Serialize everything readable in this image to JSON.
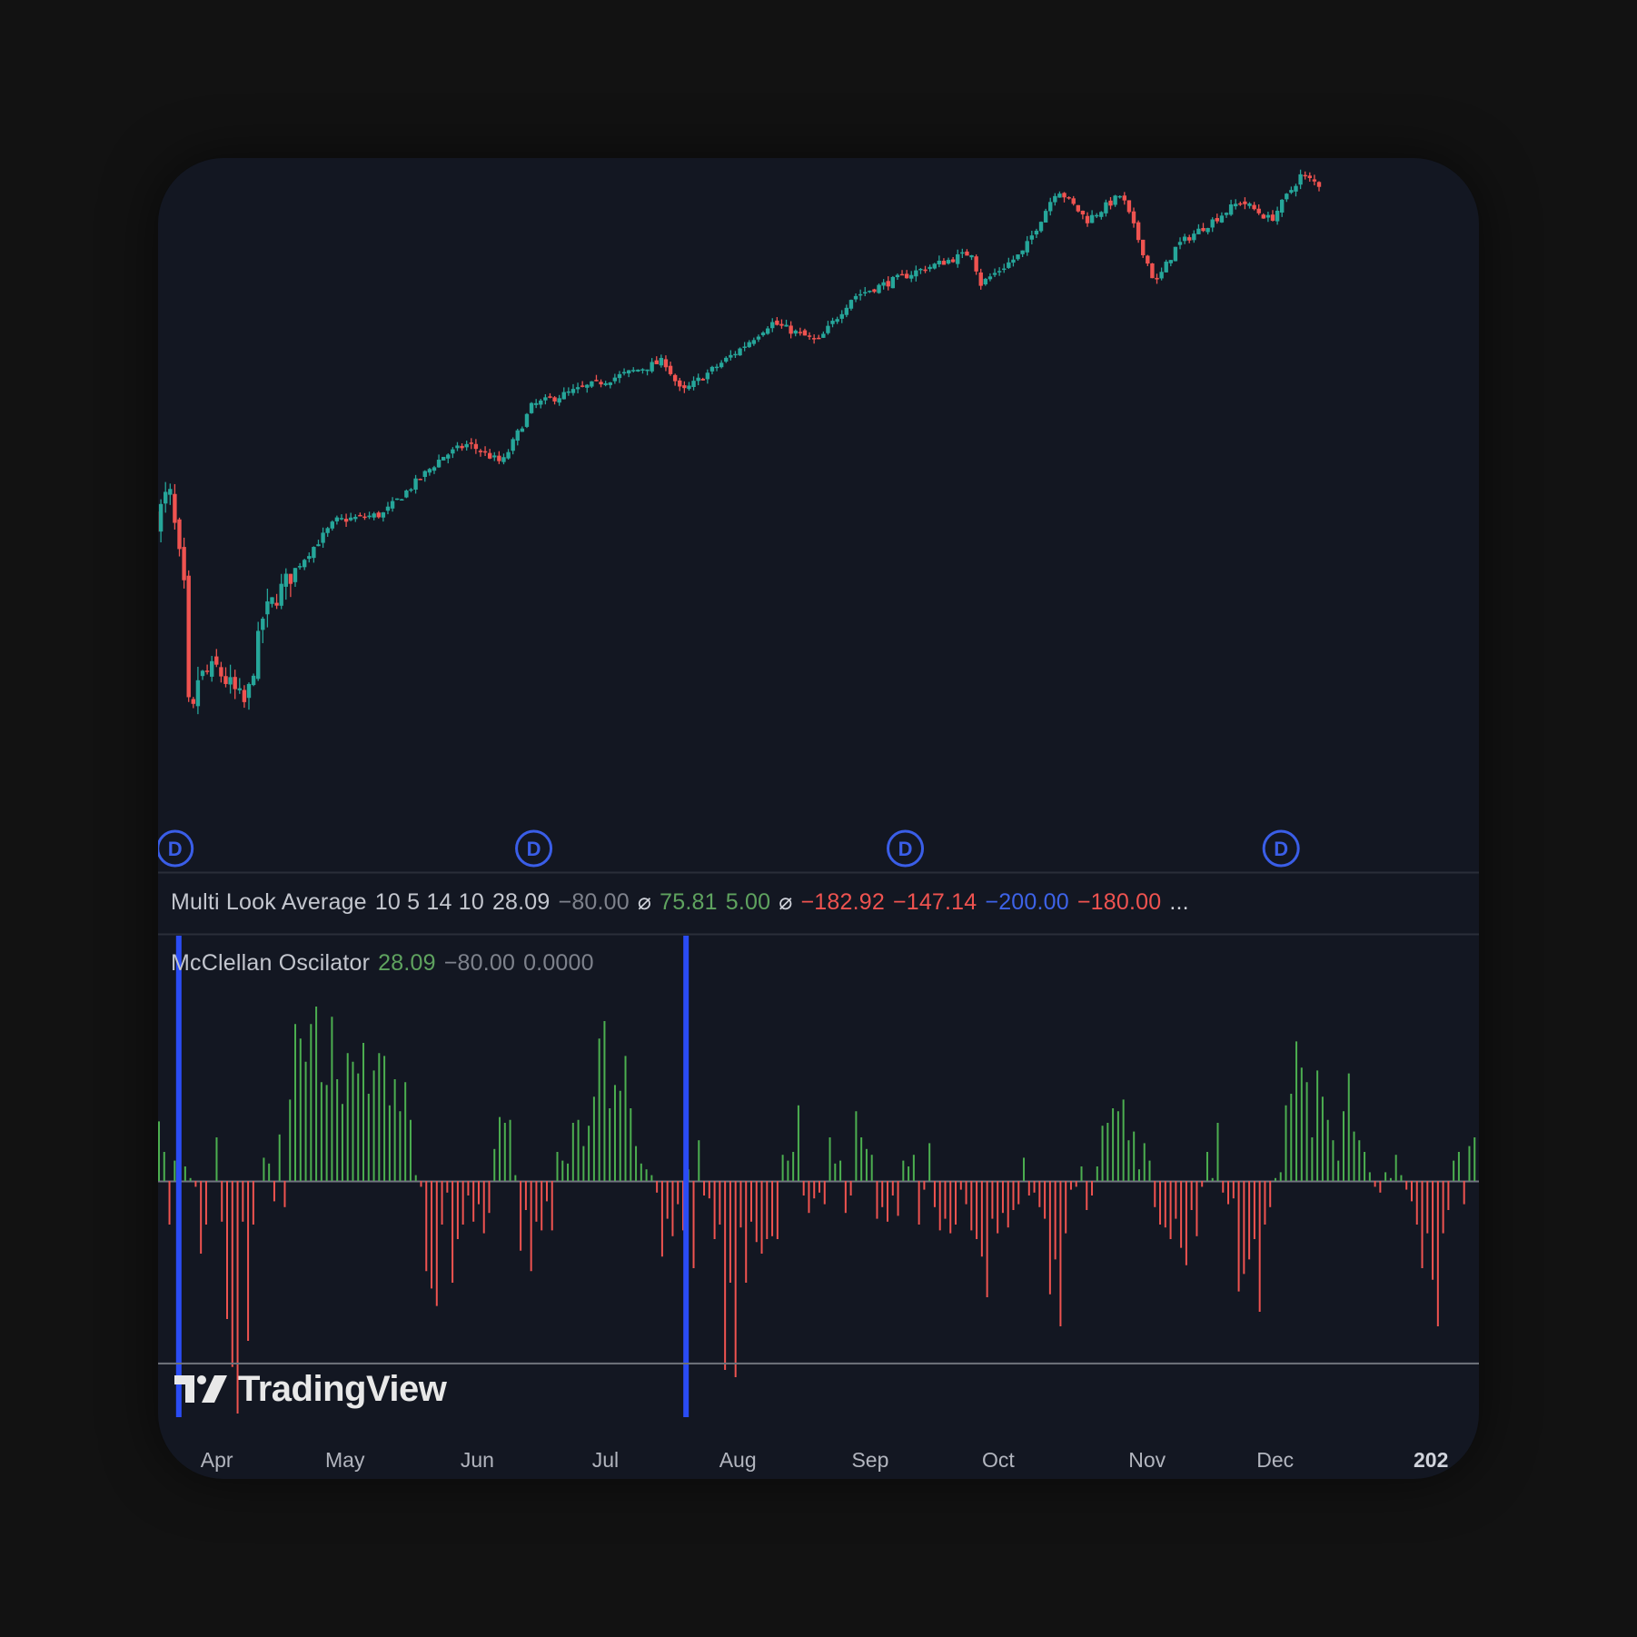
{
  "colors": {
    "background": "#131722",
    "up": "#26a69a",
    "down": "#ef5350",
    "hist_up": "#4caf50",
    "hist_down": "#ef5350",
    "highlight": "#2a4cf5",
    "dividend": "#3a5ee8"
  },
  "legend_mla": {
    "name": "Multi Look Average",
    "params": "10 5 14 10",
    "v1": "28.09",
    "v2": "−80.00",
    "sym1": "⌀",
    "v3": "75.81",
    "v4": "5.00",
    "sym2": "⌀",
    "v5": "−182.92",
    "v6": "−147.14",
    "v7": "−200.00",
    "v8": "−180.00",
    "more": "..."
  },
  "legend_osc": {
    "name": "McClellan Oscilator",
    "v1": "28.09",
    "v2": "−80.00",
    "v3": "0.0000"
  },
  "dividend_markers": [
    {
      "label": "D",
      "date": "Apr 1"
    },
    {
      "label": "D",
      "date": "Jun 24"
    },
    {
      "label": "D",
      "date": "Sep 19"
    },
    {
      "label": "D",
      "date": "Dec 16"
    }
  ],
  "branding": {
    "name": "TradingView",
    "logo_icon": "tradingview-logo-icon"
  },
  "time_axis": {
    "labels": [
      "Apr",
      "May",
      "Jun",
      "Jul",
      "Aug",
      "Sep",
      "Oct",
      "Nov",
      "Dec",
      "202"
    ]
  },
  "chart_data": [
    {
      "type": "candlestick",
      "title": "",
      "x_range": [
        "Mar 31",
        "Dec 30"
      ],
      "y_axis_shown": false,
      "price_path": [
        {
          "date": "Mar 31",
          "close": 0.45
        },
        {
          "date": "Apr 3",
          "close": 0.5
        },
        {
          "date": "Apr 7",
          "close": 0.32
        },
        {
          "date": "Apr 8",
          "close": 0.05
        },
        {
          "date": "Apr 9",
          "close": 0.2
        },
        {
          "date": "Apr 14",
          "close": 0.22
        },
        {
          "date": "Apr 21",
          "close": 0.16
        },
        {
          "date": "Apr 25",
          "close": 0.3
        },
        {
          "date": "May 2",
          "close": 0.37
        },
        {
          "date": "May 12",
          "close": 0.45
        },
        {
          "date": "May 23",
          "close": 0.46
        },
        {
          "date": "Jun 6",
          "close": 0.55
        },
        {
          "date": "Jun 12",
          "close": 0.57
        },
        {
          "date": "Jun 20",
          "close": 0.54
        },
        {
          "date": "Jun 27",
          "close": 0.63
        },
        {
          "date": "Jul 10",
          "close": 0.66
        },
        {
          "date": "Jul 28",
          "close": 0.7
        },
        {
          "date": "Aug 1",
          "close": 0.65
        },
        {
          "date": "Aug 15",
          "close": 0.72
        },
        {
          "date": "Aug 22",
          "close": 0.76
        },
        {
          "date": "Sep 2",
          "close": 0.73
        },
        {
          "date": "Sep 10",
          "close": 0.8
        },
        {
          "date": "Sep 25",
          "close": 0.84
        },
        {
          "date": "Oct 8",
          "close": 0.87
        },
        {
          "date": "Oct 10",
          "close": 0.82
        },
        {
          "date": "Oct 20",
          "close": 0.87
        },
        {
          "date": "Oct 28",
          "close": 0.97
        },
        {
          "date": "Nov 4",
          "close": 0.92
        },
        {
          "date": "Nov 12",
          "close": 0.96
        },
        {
          "date": "Nov 20",
          "close": 0.82
        },
        {
          "date": "Nov 25",
          "close": 0.88
        },
        {
          "date": "Dec 10",
          "close": 0.95
        },
        {
          "date": "Dec 17",
          "close": 0.92
        },
        {
          "date": "Dec 24",
          "close": 0.99
        },
        {
          "date": "Dec 30",
          "close": 0.97
        }
      ]
    },
    {
      "type": "bar",
      "title": "McClellan Oscilator",
      "zero_line": 0,
      "highlighted_bars": [
        "Apr 4",
        "Aug 1"
      ],
      "bars": [
        {
          "x": 0,
          "v": 41
        },
        {
          "x": 1,
          "v": 20
        },
        {
          "x": 2,
          "v": -30
        },
        {
          "x": 3,
          "v": 14
        },
        {
          "x": 4,
          "v": 24
        },
        {
          "x": 5,
          "v": 10
        },
        {
          "x": 6,
          "v": 2
        },
        {
          "x": 7,
          "v": -4
        },
        {
          "x": 8,
          "v": -50
        },
        {
          "x": 9,
          "v": -30
        },
        {
          "x": 10,
          "v": 0
        },
        {
          "x": 11,
          "v": 30
        },
        {
          "x": 12,
          "v": -28
        },
        {
          "x": 13,
          "v": -95
        },
        {
          "x": 14,
          "v": -128
        },
        {
          "x": 15,
          "v": -160
        },
        {
          "x": 16,
          "v": -28
        },
        {
          "x": 17,
          "v": -110
        },
        {
          "x": 18,
          "v": -30
        },
        {
          "x": 19,
          "v": 0
        },
        {
          "x": 20,
          "v": 16
        },
        {
          "x": 21,
          "v": 12
        },
        {
          "x": 22,
          "v": -14
        },
        {
          "x": 23,
          "v": 32
        },
        {
          "x": 24,
          "v": -18
        },
        {
          "x": 25,
          "v": 56
        },
        {
          "x": 26,
          "v": 108
        },
        {
          "x": 27,
          "v": 98
        },
        {
          "x": 28,
          "v": 82
        },
        {
          "x": 29,
          "v": 108
        },
        {
          "x": 30,
          "v": 120
        },
        {
          "x": 31,
          "v": 68
        },
        {
          "x": 32,
          "v": 66
        },
        {
          "x": 33,
          "v": 113
        },
        {
          "x": 34,
          "v": 70
        },
        {
          "x": 35,
          "v": 53
        },
        {
          "x": 36,
          "v": 88
        },
        {
          "x": 37,
          "v": 82
        },
        {
          "x": 38,
          "v": 74
        },
        {
          "x": 39,
          "v": 95
        },
        {
          "x": 40,
          "v": 60
        },
        {
          "x": 41,
          "v": 76
        },
        {
          "x": 42,
          "v": 88
        },
        {
          "x": 43,
          "v": 86
        },
        {
          "x": 44,
          "v": 52
        },
        {
          "x": 45,
          "v": 70
        },
        {
          "x": 46,
          "v": 48
        },
        {
          "x": 47,
          "v": 68
        },
        {
          "x": 48,
          "v": 42
        },
        {
          "x": 49,
          "v": 4
        },
        {
          "x": 50,
          "v": -4
        },
        {
          "x": 51,
          "v": -62
        },
        {
          "x": 52,
          "v": -74
        },
        {
          "x": 53,
          "v": -86
        },
        {
          "x": 54,
          "v": -30
        },
        {
          "x": 55,
          "v": -8
        },
        {
          "x": 56,
          "v": -70
        },
        {
          "x": 57,
          "v": -40
        },
        {
          "x": 58,
          "v": -30
        },
        {
          "x": 59,
          "v": -10
        },
        {
          "x": 60,
          "v": -28
        },
        {
          "x": 61,
          "v": -16
        },
        {
          "x": 62,
          "v": -36
        },
        {
          "x": 63,
          "v": -22
        },
        {
          "x": 64,
          "v": 22
        },
        {
          "x": 65,
          "v": 44
        },
        {
          "x": 66,
          "v": 40
        },
        {
          "x": 67,
          "v": 42
        },
        {
          "x": 68,
          "v": 4
        },
        {
          "x": 69,
          "v": -48
        },
        {
          "x": 70,
          "v": -20
        },
        {
          "x": 71,
          "v": -62
        },
        {
          "x": 72,
          "v": -28
        },
        {
          "x": 73,
          "v": -34
        },
        {
          "x": 74,
          "v": -14
        },
        {
          "x": 75,
          "v": -34
        },
        {
          "x": 76,
          "v": 20
        },
        {
          "x": 77,
          "v": 14
        },
        {
          "x": 78,
          "v": 12
        },
        {
          "x": 79,
          "v": 40
        },
        {
          "x": 80,
          "v": 42
        },
        {
          "x": 81,
          "v": 24
        },
        {
          "x": 82,
          "v": 38
        },
        {
          "x": 83,
          "v": 58
        },
        {
          "x": 84,
          "v": 98
        },
        {
          "x": 85,
          "v": 110
        },
        {
          "x": 86,
          "v": 50
        },
        {
          "x": 87,
          "v": 66
        },
        {
          "x": 88,
          "v": 62
        },
        {
          "x": 89,
          "v": 86
        },
        {
          "x": 90,
          "v": 50
        },
        {
          "x": 91,
          "v": 24
        },
        {
          "x": 92,
          "v": 12
        },
        {
          "x": 93,
          "v": 8
        },
        {
          "x": 94,
          "v": 4
        },
        {
          "x": 95,
          "v": -8
        },
        {
          "x": 96,
          "v": -52
        },
        {
          "x": 97,
          "v": -26
        },
        {
          "x": 98,
          "v": -38
        },
        {
          "x": 99,
          "v": -16
        },
        {
          "x": 100,
          "v": -34
        },
        {
          "x": 101,
          "v": 8
        },
        {
          "x": 102,
          "v": -60
        },
        {
          "x": 103,
          "v": 28
        },
        {
          "x": 104,
          "v": -10
        },
        {
          "x": 105,
          "v": -12
        },
        {
          "x": 106,
          "v": -40
        },
        {
          "x": 107,
          "v": -30
        },
        {
          "x": 108,
          "v": -130
        },
        {
          "x": 109,
          "v": -70
        },
        {
          "x": 110,
          "v": -135
        },
        {
          "x": 111,
          "v": -32
        },
        {
          "x": 112,
          "v": -70
        },
        {
          "x": 113,
          "v": -28
        },
        {
          "x": 114,
          "v": -42
        },
        {
          "x": 115,
          "v": -50
        },
        {
          "x": 116,
          "v": -40
        },
        {
          "x": 117,
          "v": -38
        },
        {
          "x": 118,
          "v": -40
        },
        {
          "x": 119,
          "v": 18
        },
        {
          "x": 120,
          "v": 14
        },
        {
          "x": 121,
          "v": 20
        },
        {
          "x": 122,
          "v": 52
        },
        {
          "x": 123,
          "v": -10
        },
        {
          "x": 124,
          "v": -22
        },
        {
          "x": 125,
          "v": -12
        },
        {
          "x": 126,
          "v": -8
        },
        {
          "x": 127,
          "v": -16
        },
        {
          "x": 128,
          "v": 30
        },
        {
          "x": 129,
          "v": 12
        },
        {
          "x": 130,
          "v": 14
        },
        {
          "x": 131,
          "v": -22
        },
        {
          "x": 132,
          "v": -10
        },
        {
          "x": 133,
          "v": 48
        },
        {
          "x": 134,
          "v": 30
        },
        {
          "x": 135,
          "v": 22
        },
        {
          "x": 136,
          "v": 18
        },
        {
          "x": 137,
          "v": -26
        },
        {
          "x": 138,
          "v": -18
        },
        {
          "x": 139,
          "v": -28
        },
        {
          "x": 140,
          "v": -10
        },
        {
          "x": 141,
          "v": -24
        },
        {
          "x": 142,
          "v": 14
        },
        {
          "x": 143,
          "v": 10
        },
        {
          "x": 144,
          "v": 18
        },
        {
          "x": 145,
          "v": -30
        },
        {
          "x": 146,
          "v": -6
        },
        {
          "x": 147,
          "v": 26
        },
        {
          "x": 148,
          "v": -18
        },
        {
          "x": 149,
          "v": -34
        },
        {
          "x": 150,
          "v": -26
        },
        {
          "x": 151,
          "v": -36
        },
        {
          "x": 152,
          "v": -30
        },
        {
          "x": 153,
          "v": -6
        },
        {
          "x": 154,
          "v": -16
        },
        {
          "x": 155,
          "v": -34
        },
        {
          "x": 156,
          "v": -40
        },
        {
          "x": 157,
          "v": -52
        },
        {
          "x": 158,
          "v": -80
        },
        {
          "x": 159,
          "v": -26
        },
        {
          "x": 160,
          "v": -36
        },
        {
          "x": 161,
          "v": -22
        },
        {
          "x": 162,
          "v": -32
        },
        {
          "x": 163,
          "v": -20
        },
        {
          "x": 164,
          "v": -16
        },
        {
          "x": 165,
          "v": 16
        },
        {
          "x": 166,
          "v": -10
        },
        {
          "x": 167,
          "v": -8
        },
        {
          "x": 168,
          "v": -18
        },
        {
          "x": 169,
          "v": -26
        },
        {
          "x": 170,
          "v": -78
        },
        {
          "x": 171,
          "v": -54
        },
        {
          "x": 172,
          "v": -100
        },
        {
          "x": 173,
          "v": -36
        },
        {
          "x": 174,
          "v": -6
        },
        {
          "x": 175,
          "v": -4
        },
        {
          "x": 176,
          "v": 10
        },
        {
          "x": 177,
          "v": -20
        },
        {
          "x": 178,
          "v": -10
        },
        {
          "x": 179,
          "v": 10
        },
        {
          "x": 180,
          "v": 38
        },
        {
          "x": 181,
          "v": 40
        },
        {
          "x": 182,
          "v": 50
        },
        {
          "x": 183,
          "v": 48
        },
        {
          "x": 184,
          "v": 56
        },
        {
          "x": 185,
          "v": 28
        },
        {
          "x": 186,
          "v": 34
        },
        {
          "x": 187,
          "v": 8
        },
        {
          "x": 188,
          "v": 26
        },
        {
          "x": 189,
          "v": 14
        },
        {
          "x": 190,
          "v": -18
        },
        {
          "x": 191,
          "v": -30
        },
        {
          "x": 192,
          "v": -32
        },
        {
          "x": 193,
          "v": -40
        },
        {
          "x": 194,
          "v": -26
        },
        {
          "x": 195,
          "v": -46
        },
        {
          "x": 196,
          "v": -58
        },
        {
          "x": 197,
          "v": -20
        },
        {
          "x": 198,
          "v": -38
        },
        {
          "x": 199,
          "v": -4
        },
        {
          "x": 200,
          "v": 20
        },
        {
          "x": 201,
          "v": 2
        },
        {
          "x": 202,
          "v": 40
        },
        {
          "x": 203,
          "v": -8
        },
        {
          "x": 204,
          "v": -16
        },
        {
          "x": 205,
          "v": -12
        },
        {
          "x": 206,
          "v": -76
        },
        {
          "x": 207,
          "v": -64
        },
        {
          "x": 208,
          "v": -54
        },
        {
          "x": 209,
          "v": -40
        },
        {
          "x": 210,
          "v": -90
        },
        {
          "x": 211,
          "v": -30
        },
        {
          "x": 212,
          "v": -18
        },
        {
          "x": 213,
          "v": 2
        },
        {
          "x": 214,
          "v": 6
        },
        {
          "x": 215,
          "v": 52
        },
        {
          "x": 216,
          "v": 60
        },
        {
          "x": 217,
          "v": 96
        },
        {
          "x": 218,
          "v": 78
        },
        {
          "x": 219,
          "v": 68
        },
        {
          "x": 220,
          "v": 30
        },
        {
          "x": 221,
          "v": 76
        },
        {
          "x": 222,
          "v": 58
        },
        {
          "x": 223,
          "v": 42
        },
        {
          "x": 224,
          "v": 28
        },
        {
          "x": 225,
          "v": 14
        },
        {
          "x": 226,
          "v": 48
        },
        {
          "x": 227,
          "v": 74
        },
        {
          "x": 228,
          "v": 34
        },
        {
          "x": 229,
          "v": 28
        },
        {
          "x": 230,
          "v": 20
        },
        {
          "x": 231,
          "v": 6
        },
        {
          "x": 232,
          "v": -4
        },
        {
          "x": 233,
          "v": -8
        },
        {
          "x": 234,
          "v": 6
        },
        {
          "x": 235,
          "v": 2
        },
        {
          "x": 236,
          "v": 18
        },
        {
          "x": 237,
          "v": 4
        },
        {
          "x": 238,
          "v": -6
        },
        {
          "x": 239,
          "v": -14
        },
        {
          "x": 240,
          "v": -30
        },
        {
          "x": 241,
          "v": -60
        },
        {
          "x": 242,
          "v": -36
        },
        {
          "x": 243,
          "v": -68
        },
        {
          "x": 244,
          "v": -100
        },
        {
          "x": 245,
          "v": -36
        },
        {
          "x": 246,
          "v": -20
        },
        {
          "x": 247,
          "v": 14
        },
        {
          "x": 248,
          "v": 20
        },
        {
          "x": 249,
          "v": -16
        },
        {
          "x": 250,
          "v": 24
        },
        {
          "x": 251,
          "v": 30
        }
      ]
    }
  ]
}
